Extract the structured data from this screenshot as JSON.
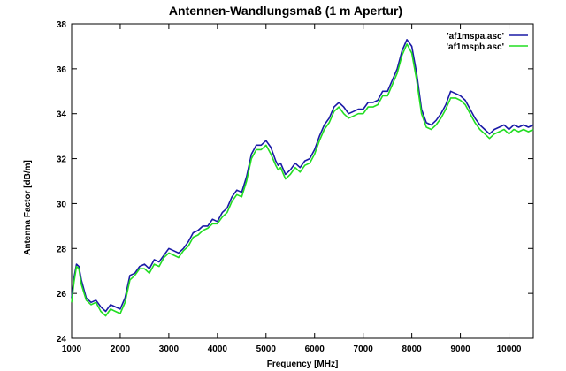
{
  "chart_data": {
    "type": "line",
    "title": "Antennen-Wandlungsmaß (1 m Apertur)",
    "xlabel": "Frequency [MHz]",
    "ylabel": "Antenna Factor [dB/m]",
    "xlim": [
      1000,
      10500
    ],
    "ylim": [
      24,
      38
    ],
    "x_ticks": [
      1000,
      2000,
      3000,
      4000,
      5000,
      6000,
      7000,
      8000,
      9000,
      10000
    ],
    "y_ticks": [
      24,
      26,
      28,
      30,
      32,
      34,
      36,
      38
    ],
    "grid": false,
    "legend_position": "top-right",
    "series": [
      {
        "name": "'af1mspa.asc'",
        "color": "#1a1aa6",
        "x": [
          1000,
          1050,
          1100,
          1150,
          1200,
          1300,
          1400,
          1500,
          1600,
          1700,
          1800,
          1900,
          2000,
          2100,
          2200,
          2300,
          2400,
          2500,
          2600,
          2700,
          2800,
          2900,
          3000,
          3100,
          3200,
          3300,
          3400,
          3500,
          3600,
          3700,
          3800,
          3900,
          4000,
          4100,
          4200,
          4300,
          4400,
          4500,
          4600,
          4700,
          4800,
          4900,
          5000,
          5100,
          5200,
          5250,
          5300,
          5400,
          5500,
          5600,
          5700,
          5800,
          5900,
          6000,
          6100,
          6200,
          6300,
          6400,
          6500,
          6600,
          6700,
          6800,
          6900,
          7000,
          7100,
          7200,
          7300,
          7400,
          7500,
          7600,
          7700,
          7800,
          7900,
          8000,
          8100,
          8200,
          8300,
          8400,
          8500,
          8600,
          8700,
          8800,
          8900,
          9000,
          9100,
          9200,
          9300,
          9400,
          9500,
          9600,
          9700,
          9800,
          9900,
          10000,
          10100,
          10200,
          10300,
          10400,
          10500
        ],
        "values": [
          25.8,
          26.7,
          27.3,
          27.2,
          26.6,
          25.8,
          25.6,
          25.7,
          25.4,
          25.2,
          25.5,
          25.4,
          25.3,
          25.8,
          26.8,
          26.9,
          27.2,
          27.3,
          27.1,
          27.5,
          27.4,
          27.7,
          28.0,
          27.9,
          27.8,
          28.0,
          28.3,
          28.7,
          28.8,
          29.0,
          29.0,
          29.3,
          29.2,
          29.6,
          29.8,
          30.3,
          30.6,
          30.5,
          31.2,
          32.2,
          32.6,
          32.6,
          32.8,
          32.5,
          31.9,
          31.7,
          31.8,
          31.3,
          31.5,
          31.8,
          31.6,
          31.9,
          32.0,
          32.4,
          33.0,
          33.5,
          33.8,
          34.3,
          34.5,
          34.3,
          34.0,
          34.1,
          34.2,
          34.2,
          34.5,
          34.5,
          34.6,
          35.0,
          35.0,
          35.5,
          36.0,
          36.8,
          37.3,
          37.0,
          35.8,
          34.2,
          33.6,
          33.5,
          33.7,
          34.0,
          34.4,
          35.0,
          34.9,
          34.8,
          34.6,
          34.2,
          33.8,
          33.5,
          33.3,
          33.1,
          33.3,
          33.4,
          33.5,
          33.3,
          33.5,
          33.4,
          33.5,
          33.4,
          33.5
        ]
      },
      {
        "name": "'af1mspb.asc'",
        "color": "#22dd22",
        "x": [
          1000,
          1050,
          1100,
          1150,
          1200,
          1300,
          1400,
          1500,
          1600,
          1700,
          1800,
          1900,
          2000,
          2100,
          2200,
          2300,
          2400,
          2500,
          2600,
          2700,
          2800,
          2900,
          3000,
          3100,
          3200,
          3300,
          3400,
          3500,
          3600,
          3700,
          3800,
          3900,
          4000,
          4100,
          4200,
          4300,
          4400,
          4500,
          4600,
          4700,
          4800,
          4900,
          5000,
          5100,
          5200,
          5250,
          5300,
          5400,
          5500,
          5600,
          5700,
          5800,
          5900,
          6000,
          6100,
          6200,
          6300,
          6400,
          6500,
          6600,
          6700,
          6800,
          6900,
          7000,
          7100,
          7200,
          7300,
          7400,
          7500,
          7600,
          7700,
          7800,
          7900,
          8000,
          8100,
          8200,
          8300,
          8400,
          8500,
          8600,
          8700,
          8800,
          8900,
          9000,
          9100,
          9200,
          9300,
          9400,
          9500,
          9600,
          9700,
          9800,
          9900,
          10000,
          10100,
          10200,
          10300,
          10400,
          10500
        ],
        "values": [
          25.6,
          26.5,
          27.2,
          27.1,
          26.4,
          25.7,
          25.5,
          25.6,
          25.2,
          25.0,
          25.3,
          25.2,
          25.1,
          25.6,
          26.6,
          26.8,
          27.1,
          27.1,
          26.9,
          27.3,
          27.2,
          27.6,
          27.8,
          27.7,
          27.6,
          27.9,
          28.1,
          28.5,
          28.6,
          28.8,
          28.9,
          29.1,
          29.1,
          29.4,
          29.6,
          30.1,
          30.4,
          30.3,
          31.0,
          32.0,
          32.4,
          32.4,
          32.6,
          32.2,
          31.7,
          31.5,
          31.6,
          31.1,
          31.3,
          31.6,
          31.4,
          31.7,
          31.8,
          32.2,
          32.8,
          33.3,
          33.6,
          34.1,
          34.3,
          34.0,
          33.8,
          33.9,
          34.0,
          34.0,
          34.3,
          34.3,
          34.4,
          34.8,
          34.8,
          35.3,
          35.8,
          36.6,
          37.1,
          36.7,
          35.5,
          34.0,
          33.4,
          33.3,
          33.5,
          33.8,
          34.2,
          34.7,
          34.7,
          34.6,
          34.4,
          34.0,
          33.6,
          33.3,
          33.1,
          32.9,
          33.1,
          33.2,
          33.3,
          33.1,
          33.3,
          33.2,
          33.3,
          33.2,
          33.3
        ]
      }
    ]
  }
}
